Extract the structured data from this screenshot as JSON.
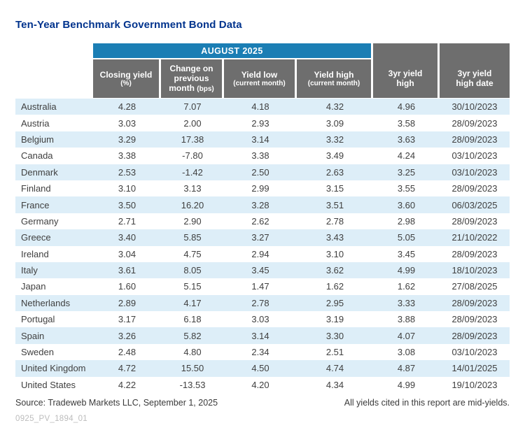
{
  "title": "Ten-Year Benchmark Government Bond Data",
  "chart_data": {
    "type": "table",
    "group_header": "AUGUST 2025",
    "columns": [
      {
        "main": "Closing yield",
        "small": "(%)"
      },
      {
        "main": "Change on previous month",
        "small": "(bps)"
      },
      {
        "main": "Yield low",
        "small": "(current month)"
      },
      {
        "main": "Yield high",
        "small": "(current month)"
      },
      {
        "line1": "3yr yield",
        "line2": "high"
      },
      {
        "line1": "3yr yield",
        "line2": "high date"
      }
    ],
    "rows": [
      {
        "country": "Australia",
        "values": [
          "4.28",
          "7.07",
          "4.18",
          "4.32",
          "4.96",
          "30/10/2023"
        ]
      },
      {
        "country": "Austria",
        "values": [
          "3.03",
          "2.00",
          "2.93",
          "3.09",
          "3.58",
          "28/09/2023"
        ]
      },
      {
        "country": "Belgium",
        "values": [
          "3.29",
          "17.38",
          "3.14",
          "3.32",
          "3.63",
          "28/09/2023"
        ]
      },
      {
        "country": "Canada",
        "values": [
          "3.38",
          "-7.80",
          "3.38",
          "3.49",
          "4.24",
          "03/10/2023"
        ]
      },
      {
        "country": "Denmark",
        "values": [
          "2.53",
          "-1.42",
          "2.50",
          "2.63",
          "3.25",
          "03/10/2023"
        ]
      },
      {
        "country": "Finland",
        "values": [
          "3.10",
          "3.13",
          "2.99",
          "3.15",
          "3.55",
          "28/09/2023"
        ]
      },
      {
        "country": "France",
        "values": [
          "3.50",
          "16.20",
          "3.28",
          "3.51",
          "3.60",
          "06/03/2025"
        ]
      },
      {
        "country": "Germany",
        "values": [
          "2.71",
          "2.90",
          "2.62",
          "2.78",
          "2.98",
          "28/09/2023"
        ]
      },
      {
        "country": "Greece",
        "values": [
          "3.40",
          "5.85",
          "3.27",
          "3.43",
          "5.05",
          "21/10/2022"
        ]
      },
      {
        "country": "Ireland",
        "values": [
          "3.04",
          "4.75",
          "2.94",
          "3.10",
          "3.45",
          "28/09/2023"
        ]
      },
      {
        "country": "Italy",
        "values": [
          "3.61",
          "8.05",
          "3.45",
          "3.62",
          "4.99",
          "18/10/2023"
        ]
      },
      {
        "country": "Japan",
        "values": [
          "1.60",
          "5.15",
          "1.47",
          "1.62",
          "1.62",
          "27/08/2025"
        ]
      },
      {
        "country": "Netherlands",
        "values": [
          "2.89",
          "4.17",
          "2.78",
          "2.95",
          "3.33",
          "28/09/2023"
        ]
      },
      {
        "country": "Portugal",
        "values": [
          "3.17",
          "6.18",
          "3.03",
          "3.19",
          "3.88",
          "28/09/2023"
        ]
      },
      {
        "country": "Spain",
        "values": [
          "3.26",
          "5.82",
          "3.14",
          "3.30",
          "4.07",
          "28/09/2023"
        ]
      },
      {
        "country": "Sweden",
        "values": [
          "2.48",
          "4.80",
          "2.34",
          "2.51",
          "3.08",
          "03/10/2023"
        ]
      },
      {
        "country": "United Kingdom",
        "values": [
          "4.72",
          "15.50",
          "4.50",
          "4.74",
          "4.87",
          "14/01/2025"
        ]
      },
      {
        "country": "United States",
        "values": [
          "4.22",
          "-13.53",
          "4.20",
          "4.34",
          "4.99",
          "19/10/2023"
        ]
      }
    ]
  },
  "footer": {
    "source": "Source: Tradeweb Markets LLC, September 1, 2025",
    "note": "All yields cited in this report are mid-yields.",
    "figure_code": "0925_PV_1894_01"
  },
  "colors": {
    "accent_blue": "#1b7eb4",
    "header_gray": "#6e6e6e",
    "row_highlight": "#ddeef8",
    "title_navy": "#00338d"
  }
}
